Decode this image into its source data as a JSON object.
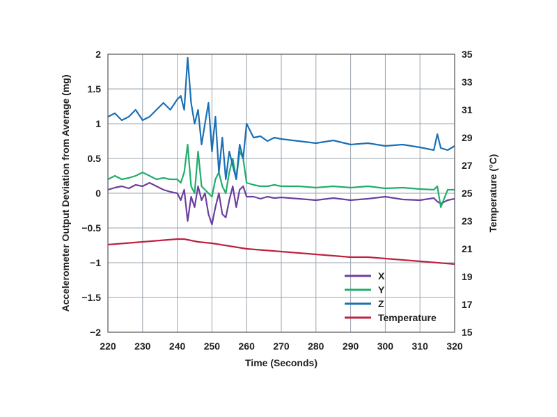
{
  "chart_data": {
    "type": "line",
    "xlabel": "Time (Seconds)",
    "ylabel": "Accelerometer Output Deviation from Average (mg)",
    "y2label": "Temperature (°C)",
    "xlim": [
      220,
      320
    ],
    "ylim": [
      -2,
      2
    ],
    "y2lim": [
      15,
      35
    ],
    "x_ticks": [
      "220",
      "230",
      "240",
      "250",
      "260",
      "270",
      "280",
      "290",
      "300",
      "310",
      "320"
    ],
    "y_ticks": [
      "2",
      "1.5",
      "1",
      "0.5",
      "0",
      "−0.5",
      "−1",
      "−1.5",
      "−2"
    ],
    "y2_ticks": [
      "35",
      "33",
      "31",
      "29",
      "27",
      "25",
      "23",
      "21",
      "19",
      "17",
      "15"
    ],
    "grid": true,
    "legend_position": "bottom-right",
    "series": [
      {
        "name": "X",
        "color": "#6b3fa0",
        "axis": "left",
        "x": [
          220,
          222,
          224,
          226,
          228,
          230,
          232,
          234,
          236,
          238,
          240,
          241,
          242,
          243,
          244,
          245,
          246,
          247,
          248,
          249,
          250,
          251,
          252,
          253,
          254,
          255,
          256,
          257,
          258,
          259,
          260,
          262,
          264,
          266,
          268,
          270,
          275,
          280,
          285,
          290,
          295,
          300,
          305,
          310,
          314,
          315,
          316,
          318,
          320
        ],
        "y": [
          0.05,
          0.08,
          0.1,
          0.07,
          0.12,
          0.1,
          0.15,
          0.1,
          0.05,
          0.02,
          0.0,
          -0.1,
          0.05,
          -0.4,
          -0.05,
          -0.2,
          0.1,
          -0.1,
          0.0,
          -0.3,
          -0.45,
          -0.2,
          0.0,
          -0.3,
          -0.35,
          -0.1,
          0.1,
          -0.2,
          0.05,
          0.1,
          -0.05,
          -0.05,
          -0.08,
          -0.05,
          -0.07,
          -0.06,
          -0.08,
          -0.1,
          -0.07,
          -0.1,
          -0.08,
          -0.05,
          -0.09,
          -0.1,
          -0.07,
          -0.12,
          -0.15,
          -0.1,
          -0.08
        ]
      },
      {
        "name": "Y",
        "color": "#1fae6b",
        "axis": "left",
        "x": [
          220,
          222,
          224,
          226,
          228,
          230,
          232,
          234,
          236,
          238,
          240,
          241,
          242,
          243,
          244,
          245,
          246,
          247,
          248,
          249,
          250,
          251,
          252,
          253,
          254,
          255,
          256,
          257,
          258,
          259,
          260,
          262,
          264,
          266,
          268,
          270,
          275,
          280,
          285,
          290,
          295,
          300,
          305,
          310,
          314,
          315,
          316,
          318,
          320
        ],
        "y": [
          0.2,
          0.25,
          0.2,
          0.22,
          0.25,
          0.3,
          0.25,
          0.2,
          0.22,
          0.2,
          0.2,
          0.15,
          0.3,
          0.7,
          0.1,
          0.0,
          0.6,
          0.1,
          0.05,
          0.0,
          -0.05,
          0.2,
          0.3,
          0.1,
          0.0,
          0.3,
          0.5,
          0.2,
          0.6,
          0.5,
          0.15,
          0.12,
          0.1,
          0.1,
          0.12,
          0.1,
          0.1,
          0.08,
          0.1,
          0.08,
          0.1,
          0.07,
          0.08,
          0.06,
          0.05,
          0.1,
          -0.2,
          0.05,
          0.05
        ]
      },
      {
        "name": "Z",
        "color": "#1a6fb5",
        "axis": "left",
        "x": [
          220,
          222,
          224,
          226,
          228,
          230,
          232,
          234,
          236,
          238,
          240,
          241,
          242,
          243,
          244,
          245,
          246,
          247,
          248,
          249,
          250,
          251,
          252,
          253,
          254,
          255,
          256,
          257,
          258,
          259,
          260,
          262,
          264,
          266,
          268,
          270,
          275,
          280,
          285,
          290,
          295,
          300,
          305,
          310,
          314,
          315,
          316,
          318,
          320
        ],
        "y": [
          1.1,
          1.15,
          1.05,
          1.1,
          1.2,
          1.05,
          1.1,
          1.2,
          1.3,
          1.2,
          1.35,
          1.4,
          1.2,
          1.95,
          1.3,
          1.0,
          1.2,
          0.7,
          1.0,
          1.3,
          0.6,
          1.1,
          0.3,
          0.8,
          0.2,
          0.6,
          0.4,
          0.2,
          0.7,
          0.5,
          1.0,
          0.8,
          0.82,
          0.75,
          0.8,
          0.78,
          0.75,
          0.72,
          0.76,
          0.7,
          0.72,
          0.68,
          0.7,
          0.66,
          0.62,
          0.85,
          0.65,
          0.62,
          0.68
        ]
      },
      {
        "name": "Temperature",
        "color": "#c0213f",
        "axis": "right",
        "x": [
          220,
          225,
          230,
          235,
          240,
          242,
          244,
          246,
          250,
          255,
          260,
          265,
          270,
          275,
          280,
          285,
          290,
          295,
          300,
          305,
          310,
          315,
          320
        ],
        "y": [
          21.3,
          21.4,
          21.5,
          21.6,
          21.7,
          21.7,
          21.6,
          21.5,
          21.4,
          21.2,
          21.0,
          20.9,
          20.8,
          20.7,
          20.6,
          20.5,
          20.4,
          20.4,
          20.3,
          20.2,
          20.1,
          20.0,
          19.9
        ]
      }
    ]
  }
}
